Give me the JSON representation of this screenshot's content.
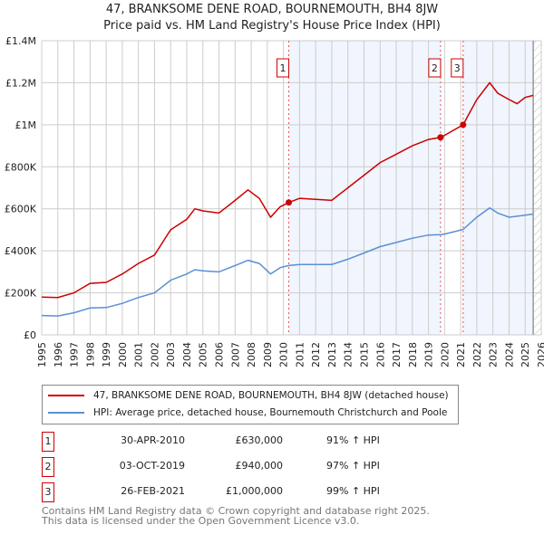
{
  "chart_data": {
    "type": "line",
    "title": "47, BRANKSOME DENE ROAD, BOURNEMOUTH, BH4 8JW",
    "subtitle": "Price paid vs. HM Land Registry's House Price Index (HPI)",
    "xlim": [
      1995,
      2026
    ],
    "ylim": [
      0,
      1400000
    ],
    "x_ticks": [
      "1995",
      "1996",
      "1997",
      "1998",
      "1999",
      "2000",
      "2001",
      "2002",
      "2003",
      "2004",
      "2005",
      "2006",
      "2007",
      "2008",
      "2009",
      "2010",
      "2011",
      "2012",
      "2013",
      "2014",
      "2015",
      "2016",
      "2017",
      "2018",
      "2019",
      "2020",
      "2021",
      "2022",
      "2023",
      "2024",
      "2025",
      "2026"
    ],
    "y_ticks": [
      {
        "v": 0,
        "label": "£0"
      },
      {
        "v": 200000,
        "label": "£200K"
      },
      {
        "v": 400000,
        "label": "£400K"
      },
      {
        "v": 600000,
        "label": "£600K"
      },
      {
        "v": 800000,
        "label": "£800K"
      },
      {
        "v": 1000000,
        "label": "£1M"
      },
      {
        "v": 1200000,
        "label": "£1.2M"
      },
      {
        "v": 1400000,
        "label": "£1.4M"
      }
    ],
    "grid": true,
    "data_end": 2025.5,
    "series": [
      {
        "name": "47, BRANKSOME DENE ROAD, BOURNEMOUTH, BH4 8JW (detached house)",
        "color": "#cc0000",
        "x": [
          1995,
          1996,
          1997,
          1998,
          1999,
          2000,
          2001,
          2002,
          2003,
          2004,
          2004.5,
          2005,
          2006,
          2007,
          2007.8,
          2008.5,
          2009.2,
          2009.8,
          2010.33,
          2011,
          2012,
          2013,
          2014,
          2015,
          2016,
          2017,
          2018,
          2019,
          2019.75,
          2020,
          2021.15,
          2021.5,
          2022,
          2022.8,
          2023.3,
          2024,
          2024.5,
          2025,
          2025.5
        ],
        "values": [
          180000,
          178000,
          200000,
          245000,
          250000,
          290000,
          340000,
          380000,
          500000,
          550000,
          600000,
          590000,
          580000,
          640000,
          690000,
          650000,
          560000,
          610000,
          630000,
          650000,
          645000,
          640000,
          700000,
          760000,
          820000,
          860000,
          900000,
          930000,
          940000,
          950000,
          1000000,
          1050000,
          1120000,
          1200000,
          1150000,
          1120000,
          1100000,
          1130000,
          1140000
        ]
      },
      {
        "name": "HPI: Average price, detached house, Bournemouth Christchurch and Poole",
        "color": "#5b8fd4",
        "x": [
          1995,
          1996,
          1997,
          1998,
          1999,
          2000,
          2001,
          2002,
          2003,
          2004,
          2004.5,
          2005,
          2006,
          2007,
          2007.8,
          2008.5,
          2009.2,
          2009.8,
          2010.33,
          2011,
          2012,
          2013,
          2014,
          2015,
          2016,
          2017,
          2018,
          2019,
          2019.75,
          2020,
          2021.15,
          2022,
          2022.8,
          2023.3,
          2024,
          2025,
          2025.5
        ],
        "values": [
          92000,
          90000,
          105000,
          128000,
          130000,
          150000,
          178000,
          200000,
          260000,
          290000,
          310000,
          305000,
          300000,
          330000,
          355000,
          340000,
          290000,
          320000,
          330000,
          335000,
          335000,
          335000,
          360000,
          390000,
          420000,
          440000,
          460000,
          475000,
          477000,
          480000,
          502000,
          560000,
          605000,
          580000,
          560000,
          570000,
          575000
        ]
      }
    ],
    "sales": [
      {
        "id": "1",
        "date": "30-APR-2010",
        "x": 2010.33,
        "price": "£630,000",
        "value": 630000,
        "hpi": "91% ↑ HPI"
      },
      {
        "id": "2",
        "date": "03-OCT-2019",
        "x": 2019.75,
        "price": "£940,000",
        "value": 940000,
        "hpi": "97% ↑ HPI"
      },
      {
        "id": "3",
        "date": "26-FEB-2021",
        "x": 2021.15,
        "price": "£1,000,000",
        "value": 1000000,
        "hpi": "99% ↑ HPI"
      }
    ],
    "legend_placement": "below"
  },
  "footer": {
    "line1": "Contains HM Land Registry data © Crown copyright and database right 2025.",
    "line2": "This data is licensed under the Open Government Licence v3.0."
  }
}
